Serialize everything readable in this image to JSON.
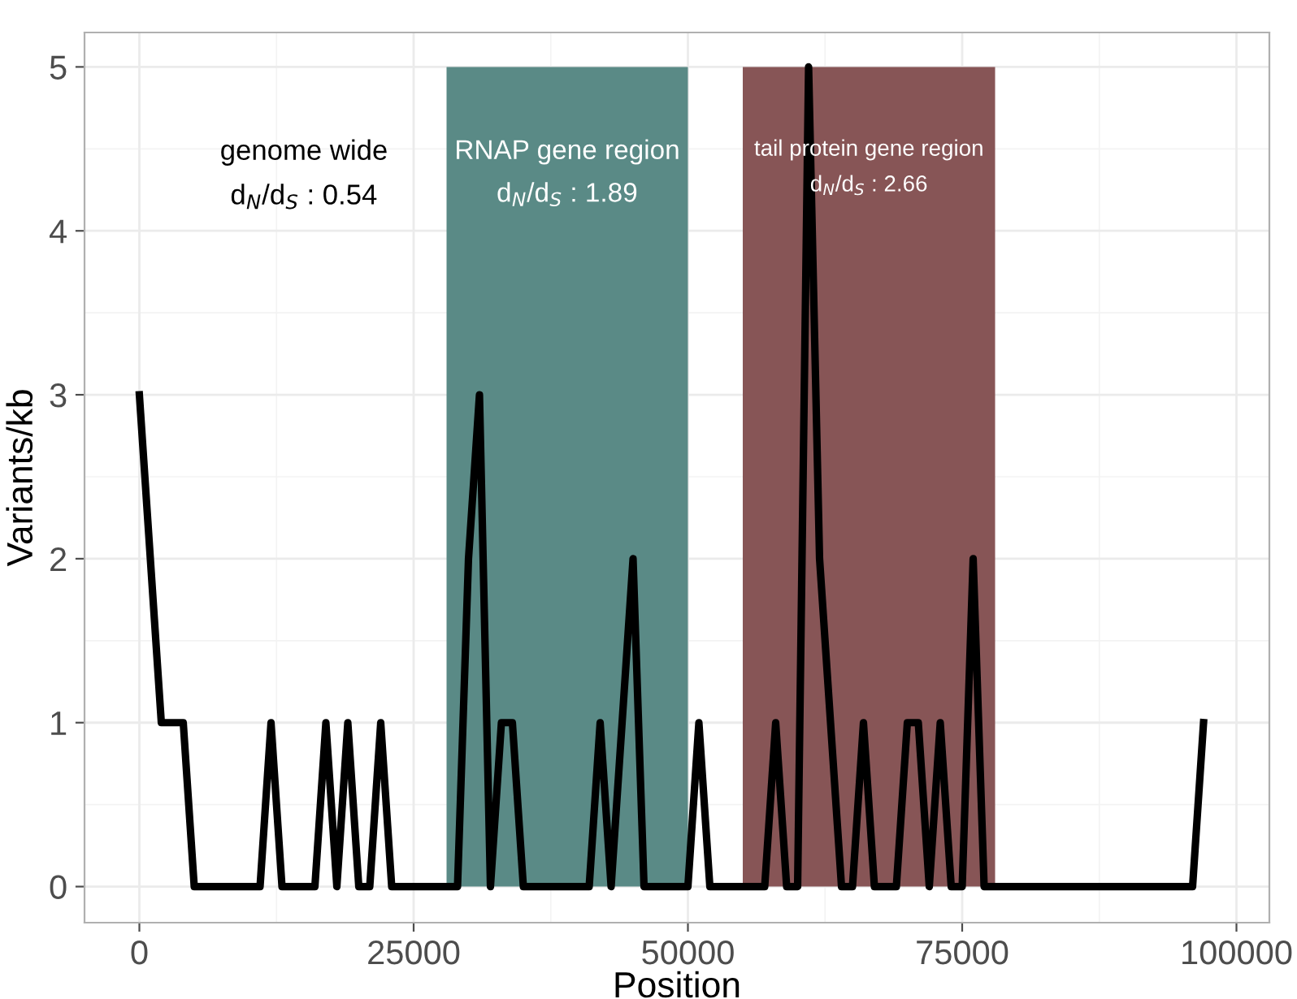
{
  "chart_data": {
    "type": "line",
    "xlabel": "Position",
    "ylabel": "Variants/kb",
    "x": [
      0,
      2000,
      4000,
      5000,
      11000,
      12000,
      13000,
      16000,
      17000,
      18000,
      19000,
      20000,
      21000,
      22000,
      23000,
      29000,
      30000,
      31000,
      32000,
      33000,
      34000,
      35000,
      41000,
      42000,
      43000,
      45000,
      46000,
      50000,
      51000,
      52000,
      57000,
      58000,
      59000,
      60000,
      61000,
      62000,
      64000,
      65000,
      66000,
      67000,
      69000,
      70000,
      71000,
      72000,
      73000,
      74000,
      75000,
      76000,
      77000,
      96000,
      97000
    ],
    "series": [
      {
        "color": "#000000",
        "values": [
          3,
          1,
          1,
          0,
          0,
          1,
          0,
          0,
          1,
          0,
          1,
          0,
          0,
          1,
          0,
          0,
          2,
          3,
          0,
          1,
          1,
          0,
          0,
          1,
          0,
          2,
          0,
          0,
          1,
          0,
          0,
          1,
          0,
          0,
          5,
          2,
          0,
          0,
          1,
          0,
          0,
          1,
          1,
          0,
          1,
          0,
          0,
          2,
          0,
          0,
          1
        ]
      }
    ],
    "bands": [
      {
        "axis": "x",
        "from": 28000,
        "to": 50000,
        "label": "RNAP gene region\nd$_{N}$/d$_{S}$ : 1.89",
        "color": "#5a8a86"
      },
      {
        "axis": "x",
        "from": 55000,
        "to": 78000,
        "label": "tail protein gene region\nd$_{N}$/d$_{S}$ : 2.66",
        "color": "#875556"
      }
    ],
    "annotations": [
      "genome wide\nd$_{N}$/d$_{S}$ : 0.54"
    ],
    "xlim": [
      -5000,
      103000
    ],
    "xticks": [
      0,
      25000,
      50000,
      75000,
      100000
    ],
    "ylim": [
      -0.22,
      5.21
    ],
    "yticks": [
      0,
      1,
      2,
      3,
      4,
      5
    ],
    "grid": true,
    "legend": false,
    "line_style": "solid",
    "marker": "none"
  }
}
